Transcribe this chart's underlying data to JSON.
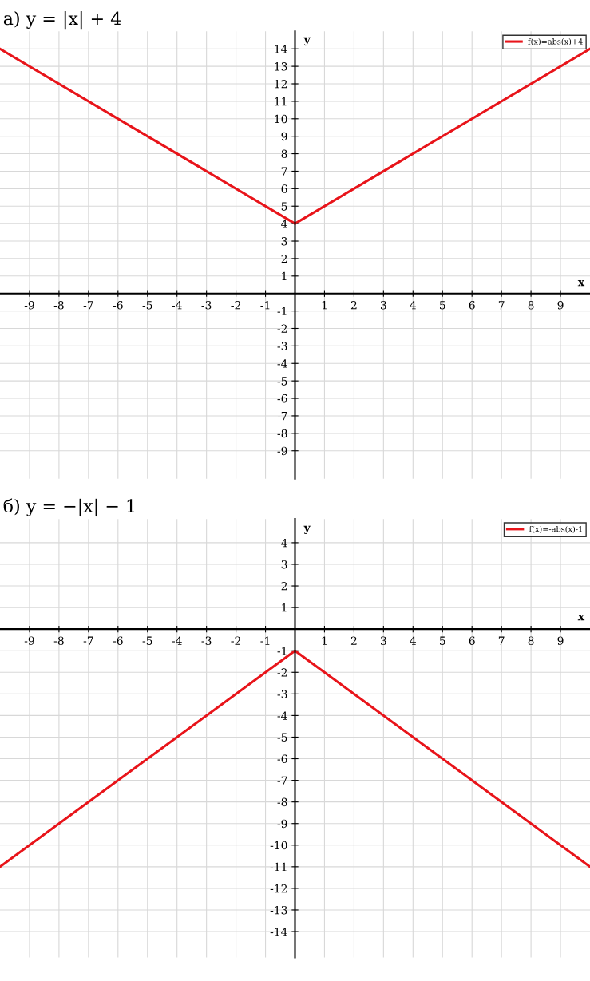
{
  "chart_data": [
    {
      "type": "line",
      "title": "а) y = |x| + 4",
      "xlabel": "x",
      "ylabel": "y",
      "x": [
        -10,
        0,
        10
      ],
      "series": [
        {
          "name": "f(x)=abs(x)+4",
          "color": "#e8141a",
          "values": [
            14,
            4,
            14
          ]
        }
      ],
      "xlim": [
        -10,
        10
      ],
      "ylim": [
        -10.6,
        15
      ],
      "xticks": [
        -9,
        -8,
        -7,
        -6,
        -5,
        -4,
        -3,
        -2,
        -1,
        1,
        2,
        3,
        4,
        5,
        6,
        7,
        8,
        9
      ],
      "yticks": [
        -9,
        -8,
        -7,
        -6,
        -5,
        -4,
        -3,
        -2,
        -1,
        1,
        2,
        3,
        4,
        5,
        6,
        7,
        8,
        9,
        10,
        11,
        12,
        13,
        14
      ],
      "grid": true,
      "legend": "top right",
      "line_style": "solid"
    },
    {
      "type": "line",
      "title": "б) y = −|x| − 1",
      "xlabel": "x",
      "ylabel": "y",
      "x": [
        -10,
        0,
        10
      ],
      "series": [
        {
          "name": "f(x)=-abs(x)-1",
          "color": "#e8141a",
          "values": [
            -11,
            -1,
            -11
          ]
        }
      ],
      "xlim": [
        -10,
        10
      ],
      "ylim": [
        -15.2,
        5.1
      ],
      "xticks": [
        -9,
        -8,
        -7,
        -6,
        -5,
        -4,
        -3,
        -2,
        -1,
        1,
        2,
        3,
        4,
        5,
        6,
        7,
        8,
        9
      ],
      "yticks": [
        -14,
        -13,
        -12,
        -11,
        -10,
        -9,
        -8,
        -7,
        -6,
        -5,
        -4,
        -3,
        -2,
        -1,
        1,
        2,
        3,
        4
      ],
      "grid": true,
      "legend": "top right",
      "line_style": "solid"
    }
  ]
}
